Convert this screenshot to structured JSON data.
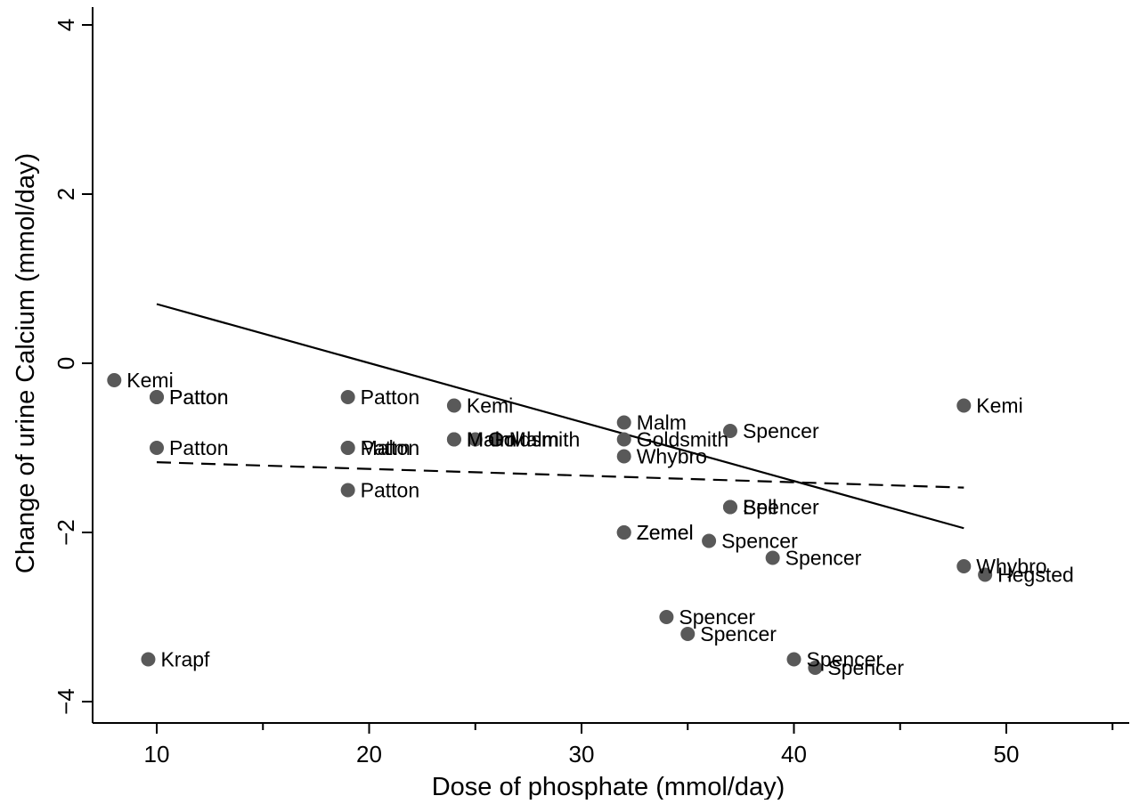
{
  "chart_data": {
    "type": "scatter",
    "xlabel": "Dose of phosphate (mmol/day)",
    "ylabel": "Change of urine Calcium (mmol/day)",
    "xlim": [
      7,
      55.5
    ],
    "ylim": [
      -4.4,
      4.2
    ],
    "x_ticks": [
      10,
      20,
      30,
      40,
      50
    ],
    "x_minor_ticks": [
      15,
      25,
      35,
      45,
      55
    ],
    "x_tick_labels": [
      "10",
      "20",
      "30",
      "40",
      "50"
    ],
    "y_ticks": [
      4,
      2,
      0,
      -2,
      -4
    ],
    "y_tick_labels": [
      "4",
      "2",
      "0",
      "−2",
      "−4"
    ],
    "grid": false,
    "point_color": "#595959",
    "points": [
      {
        "x": 8,
        "y": -0.2,
        "label": "Kemi"
      },
      {
        "x": 10,
        "y": -0.4,
        "label": "Patton"
      },
      {
        "x": 10,
        "y": -0.4,
        "label": "Patton"
      },
      {
        "x": 10,
        "y": -1.0,
        "label": "Patton"
      },
      {
        "x": 9.6,
        "y": -3.5,
        "label": "Krapf"
      },
      {
        "x": 19,
        "y": -0.4,
        "label": "Patton"
      },
      {
        "x": 19,
        "y": -1.0,
        "label": "Malm"
      },
      {
        "x": 19,
        "y": -1.0,
        "label": "Patton"
      },
      {
        "x": 19,
        "y": -1.5,
        "label": "Patton"
      },
      {
        "x": 24,
        "y": -0.5,
        "label": "Kemi"
      },
      {
        "x": 24,
        "y": -0.9,
        "label": "Malm"
      },
      {
        "x": 24,
        "y": -0.9,
        "label": "Malm"
      },
      {
        "x": 25,
        "y": -0.9,
        "label": "Goldsmith"
      },
      {
        "x": 26,
        "y": -0.9,
        "label": "Malm"
      },
      {
        "x": 32,
        "y": -0.7,
        "label": "Malm"
      },
      {
        "x": 32,
        "y": -0.9,
        "label": "Goldsmith"
      },
      {
        "x": 32,
        "y": -1.1,
        "label": "Whybro"
      },
      {
        "x": 32,
        "y": -2.0,
        "label": "Zemel"
      },
      {
        "x": 32,
        "y": -2.0,
        "label": "Zemel"
      },
      {
        "x": 37,
        "y": -0.8,
        "label": "Spencer"
      },
      {
        "x": 37,
        "y": -1.7,
        "label": "Bell"
      },
      {
        "x": 37,
        "y": -1.7,
        "label": "Spencer"
      },
      {
        "x": 36,
        "y": -2.1,
        "label": "Spencer"
      },
      {
        "x": 39,
        "y": -2.3,
        "label": "Spencer"
      },
      {
        "x": 34,
        "y": -3.0,
        "label": "Spencer"
      },
      {
        "x": 35,
        "y": -3.2,
        "label": "Spencer"
      },
      {
        "x": 40,
        "y": -3.5,
        "label": "Spencer"
      },
      {
        "x": 41,
        "y": -3.6,
        "label": "Spencer"
      },
      {
        "x": 48,
        "y": -0.5,
        "label": "Kemi"
      },
      {
        "x": 48,
        "y": -2.4,
        "label": "Whybro"
      },
      {
        "x": 49,
        "y": -2.5,
        "label": "Hegsted"
      }
    ],
    "fit_lines": [
      {
        "style": "solid",
        "x": [
          10,
          48
        ],
        "y": [
          0.7,
          -1.95
        ]
      },
      {
        "style": "dashed",
        "x": [
          10,
          48
        ],
        "y": [
          -1.17,
          -1.47
        ]
      }
    ]
  }
}
